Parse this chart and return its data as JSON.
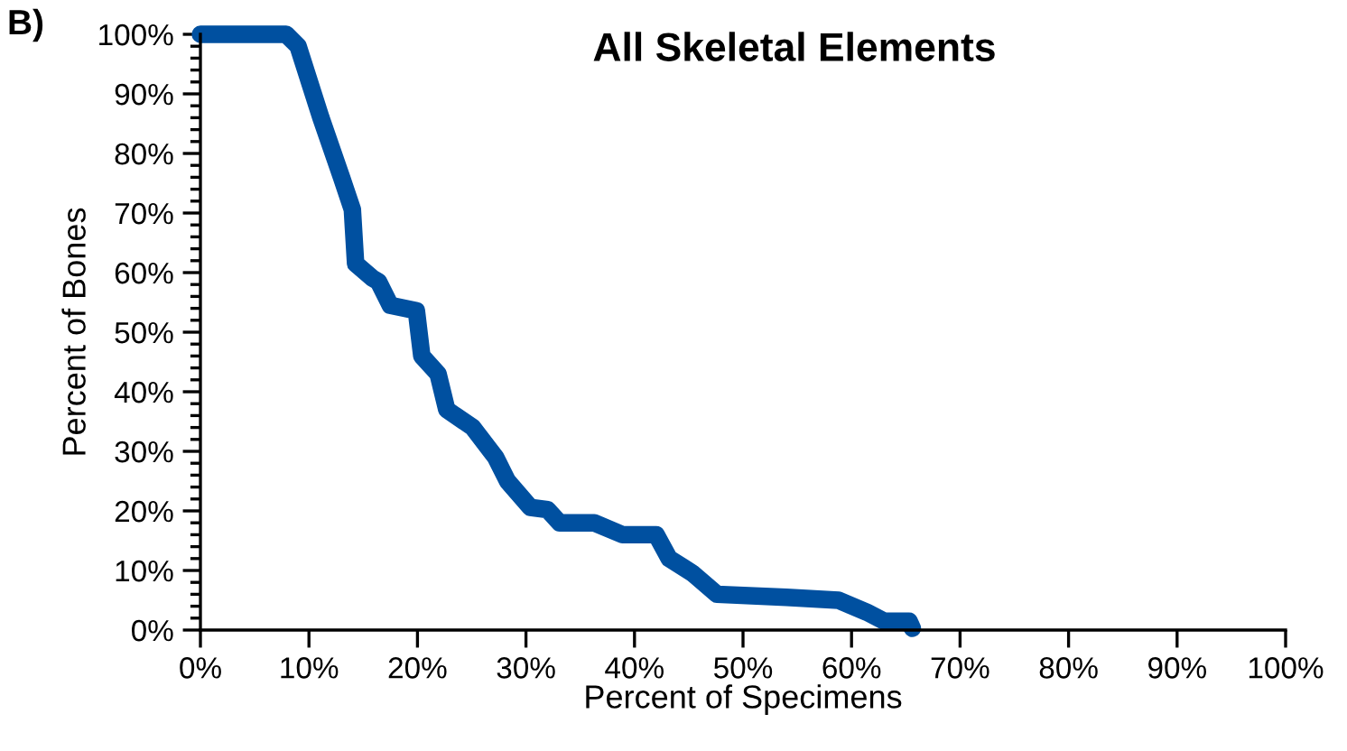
{
  "chart_data": {
    "type": "line",
    "title": "All Skeletal Elements",
    "xlabel": "Percent of Specimens",
    "ylabel": "Percent of Bones",
    "annotations": [
      "B)"
    ],
    "x": [
      0,
      7.9,
      9.0,
      11.1,
      13.0,
      14.0,
      14.3,
      15.9,
      16.4,
      17.5,
      19.9,
      20.4,
      21.9,
      22.7,
      25.1,
      27.2,
      28.3,
      30.4,
      32.0,
      33.1,
      36.3,
      38.9,
      42.0,
      43.2,
      45.3,
      47.6,
      54.0,
      58.8,
      61.4,
      63.0,
      65.3,
      65.6
    ],
    "series": [
      {
        "color": "#0050a0",
        "values": [
          100,
          100,
          98,
          86,
          76,
          70.6,
          61.5,
          59,
          58.5,
          54.5,
          53.6,
          46,
          43,
          37,
          34,
          29,
          25,
          20.6,
          20.2,
          18,
          18,
          16,
          16,
          12,
          9.6,
          6,
          5.5,
          5,
          3,
          1.5,
          1.5,
          0.3
        ]
      }
    ],
    "xlim": [
      0,
      100
    ],
    "xticks": [
      {
        "value": 0,
        "label": "0%"
      },
      {
        "value": 10,
        "label": "10%"
      },
      {
        "value": 20,
        "label": "20%"
      },
      {
        "value": 30,
        "label": "30%"
      },
      {
        "value": 40,
        "label": "40%"
      },
      {
        "value": 50,
        "label": "50%"
      },
      {
        "value": 60,
        "label": "60%"
      },
      {
        "value": 70,
        "label": "70%"
      },
      {
        "value": 80,
        "label": "80%"
      },
      {
        "value": 90,
        "label": "90%"
      },
      {
        "value": 100,
        "label": "100%"
      }
    ],
    "ylim": [
      0,
      100
    ],
    "yticks": [
      {
        "value": 0,
        "label": "0%"
      },
      {
        "value": 10,
        "label": "10%"
      },
      {
        "value": 20,
        "label": "20%"
      },
      {
        "value": 30,
        "label": "30%"
      },
      {
        "value": 40,
        "label": "40%"
      },
      {
        "value": 50,
        "label": "50%"
      },
      {
        "value": 60,
        "label": "60%"
      },
      {
        "value": 70,
        "label": "70%"
      },
      {
        "value": 80,
        "label": "80%"
      },
      {
        "value": 90,
        "label": "90%"
      },
      {
        "value": 100,
        "label": "100%"
      }
    ],
    "grid": false,
    "legend": false,
    "marker": "none",
    "line_style": "solid"
  }
}
